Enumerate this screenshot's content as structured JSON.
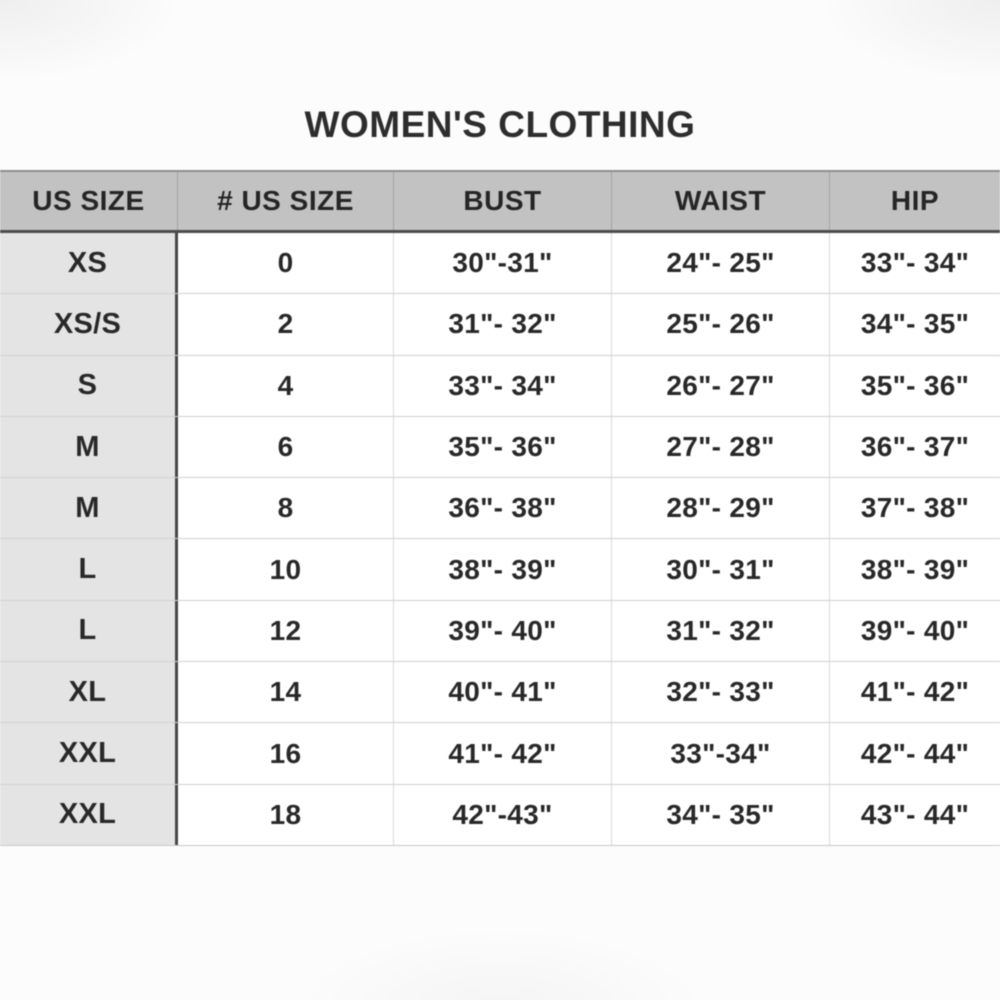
{
  "title": "WOMEN'S CLOTHING",
  "table": {
    "columns": [
      "US SIZE",
      "# US SIZE",
      "BUST",
      "WAIST",
      "HIP"
    ],
    "rows": [
      {
        "us_size": "XS",
        "num_size": "0",
        "bust": "30\"-31\"",
        "waist": "24\"- 25\"",
        "hip": "33\"- 34\""
      },
      {
        "us_size": "XS/S",
        "num_size": "2",
        "bust": "31\"- 32\"",
        "waist": "25\"- 26\"",
        "hip": "34\"- 35\""
      },
      {
        "us_size": "S",
        "num_size": "4",
        "bust": "33\"- 34\"",
        "waist": "26\"- 27\"",
        "hip": "35\"- 36\""
      },
      {
        "us_size": "M",
        "num_size": "6",
        "bust": "35\"- 36\"",
        "waist": "27\"- 28\"",
        "hip": "36\"- 37\""
      },
      {
        "us_size": "M",
        "num_size": "8",
        "bust": "36\"- 38\"",
        "waist": "28\"- 29\"",
        "hip": "37\"- 38\""
      },
      {
        "us_size": "L",
        "num_size": "10",
        "bust": "38\"- 39\"",
        "waist": "30\"- 31\"",
        "hip": "38\"- 39\""
      },
      {
        "us_size": "L",
        "num_size": "12",
        "bust": "39\"- 40\"",
        "waist": "31\"- 32\"",
        "hip": "39\"- 40\""
      },
      {
        "us_size": "XL",
        "num_size": "14",
        "bust": "40\"- 41\"",
        "waist": "32\"- 33\"",
        "hip": "41\"- 42\""
      },
      {
        "us_size": "XXL",
        "num_size": "16",
        "bust": "41\"- 42\"",
        "waist": "33\"-34\"",
        "hip": "42\"- 44\""
      },
      {
        "us_size": "XXL",
        "num_size": "18",
        "bust": "42\"-43\"",
        "waist": "34\"- 35\"",
        "hip": "43\"- 44\""
      }
    ]
  },
  "colors": {
    "header_bg": "#c2c2c2",
    "first_col_bg": "#e4e4e4",
    "dark_rule": "#474747",
    "text": "#282828",
    "page_bg": "#fcfcfc"
  }
}
